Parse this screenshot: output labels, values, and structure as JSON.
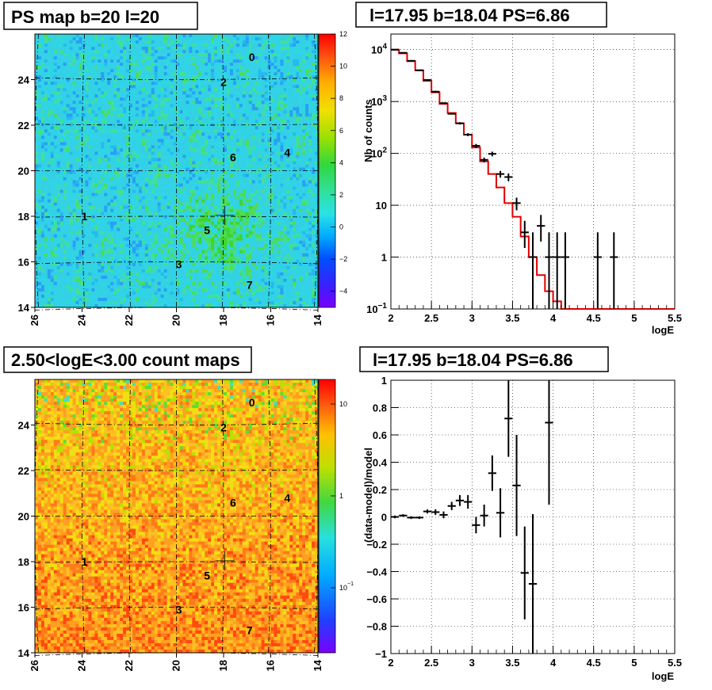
{
  "panels": {
    "ps_map": {
      "title": "PS map b=20 l=20"
    },
    "spectrum": {
      "title": "l=17.95 b=18.04 PS=6.86"
    },
    "count_map": {
      "title": "2.50<logE<3.00 count maps"
    },
    "residual": {
      "title": "l=17.95 b=18.04 PS=6.86"
    }
  },
  "colors": {
    "map_background_ps": "#2fd3e6",
    "map_background_count": "#f5a020",
    "model_line": "#e00000",
    "data_marker": "#000000",
    "grid": "#000000"
  },
  "chart_data": [
    {
      "type": "heatmap",
      "title": "PS map b=20 l=20",
      "x_ticks": [
        "26",
        "24",
        "22",
        "20",
        "18",
        "16",
        "14"
      ],
      "y_ticks": [
        "14",
        "16",
        "18",
        "20",
        "22",
        "24"
      ],
      "xlim": [
        26,
        14
      ],
      "ylim": [
        14,
        26
      ],
      "colorbar_ticks": [
        "12",
        "10",
        "8",
        "6",
        "4",
        "2",
        "0",
        "−2",
        "−4"
      ],
      "colorbar_range": [
        -5,
        12
      ],
      "sources": [
        {
          "label": "0",
          "l": 16.8,
          "b": 25.0
        },
        {
          "label": "2",
          "l": 18.0,
          "b": 23.9
        },
        {
          "label": "6",
          "l": 17.6,
          "b": 20.6
        },
        {
          "label": "4",
          "l": 15.3,
          "b": 20.8
        },
        {
          "label": "1",
          "l": 23.9,
          "b": 18.0
        },
        {
          "label": "5",
          "l": 18.7,
          "b": 17.4
        },
        {
          "label": "3",
          "l": 19.9,
          "b": 15.9
        },
        {
          "label": "7",
          "l": 16.9,
          "b": 15.0
        }
      ]
    },
    {
      "type": "line",
      "title": "l=17.95 b=18.04 PS=6.86",
      "xlabel": "logE",
      "ylabel": "Nb of counts",
      "log_y": true,
      "xlim": [
        2,
        5.5
      ],
      "ylim": [
        0.1,
        20000
      ],
      "x_ticks": [
        "2",
        "2.5",
        "3",
        "3.5",
        "4",
        "4.5",
        "5",
        "5.5"
      ],
      "y_ticks": [
        "10^-1",
        "1",
        "10",
        "10^2",
        "10^3",
        "10^4"
      ],
      "model_step": {
        "edges": [
          2.0,
          2.1,
          2.2,
          2.3,
          2.4,
          2.5,
          2.6,
          2.7,
          2.8,
          2.9,
          3.0,
          3.1,
          3.2,
          3.3,
          3.4,
          3.5,
          3.6,
          3.7,
          3.8,
          3.9,
          4.0,
          4.1,
          4.2,
          4.3,
          4.4,
          5.5
        ],
        "values": [
          10000,
          8500,
          6000,
          4000,
          2500,
          1500,
          900,
          600,
          380,
          230,
          130,
          70,
          40,
          22,
          11,
          6,
          2.5,
          1.0,
          0.45,
          0.22,
          0.14,
          0.1,
          0.1,
          0.1,
          0.1
        ]
      },
      "data_points": [
        {
          "x": 2.05,
          "y": 10000,
          "err_lo": 9800,
          "err_hi": 10200
        },
        {
          "x": 2.15,
          "y": 8700,
          "err_lo": 8500,
          "err_hi": 8900
        },
        {
          "x": 2.25,
          "y": 6100,
          "err_lo": 5950,
          "err_hi": 6250
        },
        {
          "x": 2.35,
          "y": 4000,
          "err_lo": 3900,
          "err_hi": 4100
        },
        {
          "x": 2.45,
          "y": 2600,
          "err_lo": 2500,
          "err_hi": 2700
        },
        {
          "x": 2.55,
          "y": 1550,
          "err_lo": 1500,
          "err_hi": 1600
        },
        {
          "x": 2.65,
          "y": 930,
          "err_lo": 900,
          "err_hi": 960
        },
        {
          "x": 2.75,
          "y": 580,
          "err_lo": 560,
          "err_hi": 600
        },
        {
          "x": 2.85,
          "y": 380,
          "err_lo": 360,
          "err_hi": 400
        },
        {
          "x": 2.95,
          "y": 230,
          "err_lo": 215,
          "err_hi": 245
        },
        {
          "x": 3.05,
          "y": 140,
          "err_lo": 128,
          "err_hi": 152
        },
        {
          "x": 3.15,
          "y": 75,
          "err_lo": 67,
          "err_hi": 83
        },
        {
          "x": 3.25,
          "y": 98,
          "err_lo": 88,
          "err_hi": 108
        },
        {
          "x": 3.35,
          "y": 40,
          "err_lo": 34,
          "err_hi": 46
        },
        {
          "x": 3.45,
          "y": 35,
          "err_lo": 29,
          "err_hi": 41
        },
        {
          "x": 3.55,
          "y": 11,
          "err_lo": 8,
          "err_hi": 14
        },
        {
          "x": 3.65,
          "y": 3,
          "err_lo": 1.5,
          "err_hi": 5
        },
        {
          "x": 3.75,
          "y": 1,
          "err_lo": 0.1,
          "err_hi": 3
        },
        {
          "x": 3.85,
          "y": 4,
          "err_lo": 2,
          "err_hi": 6.5
        },
        {
          "x": 3.95,
          "y": 1,
          "err_lo": 0.1,
          "err_hi": 3
        },
        {
          "x": 4.05,
          "y": 1,
          "err_lo": 0.1,
          "err_hi": 3
        },
        {
          "x": 4.15,
          "y": 1,
          "err_lo": 0.1,
          "err_hi": 3
        },
        {
          "x": 4.55,
          "y": 1,
          "err_lo": 0.1,
          "err_hi": 3
        },
        {
          "x": 4.75,
          "y": 1,
          "err_lo": 0.1,
          "err_hi": 3
        }
      ]
    },
    {
      "type": "heatmap",
      "title": "2.50<logE<3.00 count maps",
      "x_ticks": [
        "26",
        "24",
        "22",
        "20",
        "18",
        "16",
        "14"
      ],
      "y_ticks": [
        "14",
        "16",
        "18",
        "20",
        "22",
        "24"
      ],
      "xlim": [
        26,
        14
      ],
      "ylim": [
        14,
        26
      ],
      "colorbar_ticks": [
        "10",
        "1",
        "10^-1"
      ],
      "log_colorbar": true
    },
    {
      "type": "scatter",
      "title": "l=17.95 b=18.04 PS=6.86",
      "xlabel": "logE",
      "ylabel": "(data-model)/model",
      "xlim": [
        2,
        5.5
      ],
      "ylim": [
        -1,
        1
      ],
      "x_ticks": [
        "2",
        "2.5",
        "3",
        "3.5",
        "4",
        "4.5",
        "5",
        "5.5"
      ],
      "y_ticks": [
        "−1",
        "−0.8",
        "−0.6",
        "−0.4",
        "−0.2",
        "0",
        "0.2",
        "0.4",
        "0.6",
        "0.8",
        "1"
      ],
      "points": [
        {
          "x": 2.05,
          "y": 0.0,
          "err": 0.01
        },
        {
          "x": 2.15,
          "y": 0.01,
          "err": 0.01
        },
        {
          "x": 2.25,
          "y": -0.005,
          "err": 0.01
        },
        {
          "x": 2.35,
          "y": -0.005,
          "err": 0.01
        },
        {
          "x": 2.45,
          "y": 0.04,
          "err": 0.015
        },
        {
          "x": 2.55,
          "y": 0.035,
          "err": 0.02
        },
        {
          "x": 2.65,
          "y": 0.015,
          "err": 0.025
        },
        {
          "x": 2.75,
          "y": 0.08,
          "err": 0.03
        },
        {
          "x": 2.85,
          "y": 0.12,
          "err": 0.04
        },
        {
          "x": 2.95,
          "y": 0.11,
          "err": 0.05
        },
        {
          "x": 3.05,
          "y": -0.06,
          "err": 0.06
        },
        {
          "x": 3.15,
          "y": 0.01,
          "err": 0.08
        },
        {
          "x": 3.25,
          "y": 0.32,
          "err": 0.13
        },
        {
          "x": 3.35,
          "y": 0.03,
          "err": 0.18
        },
        {
          "x": 3.45,
          "y": 0.72,
          "err": 0.28
        },
        {
          "x": 3.55,
          "y": 0.23,
          "err": 0.37
        },
        {
          "x": 3.65,
          "y": -0.41,
          "err": 0.34
        },
        {
          "x": 3.75,
          "y": -0.49,
          "err": 0.51
        },
        {
          "x": 3.95,
          "y": 0.69,
          "err": 0.6
        }
      ]
    }
  ]
}
